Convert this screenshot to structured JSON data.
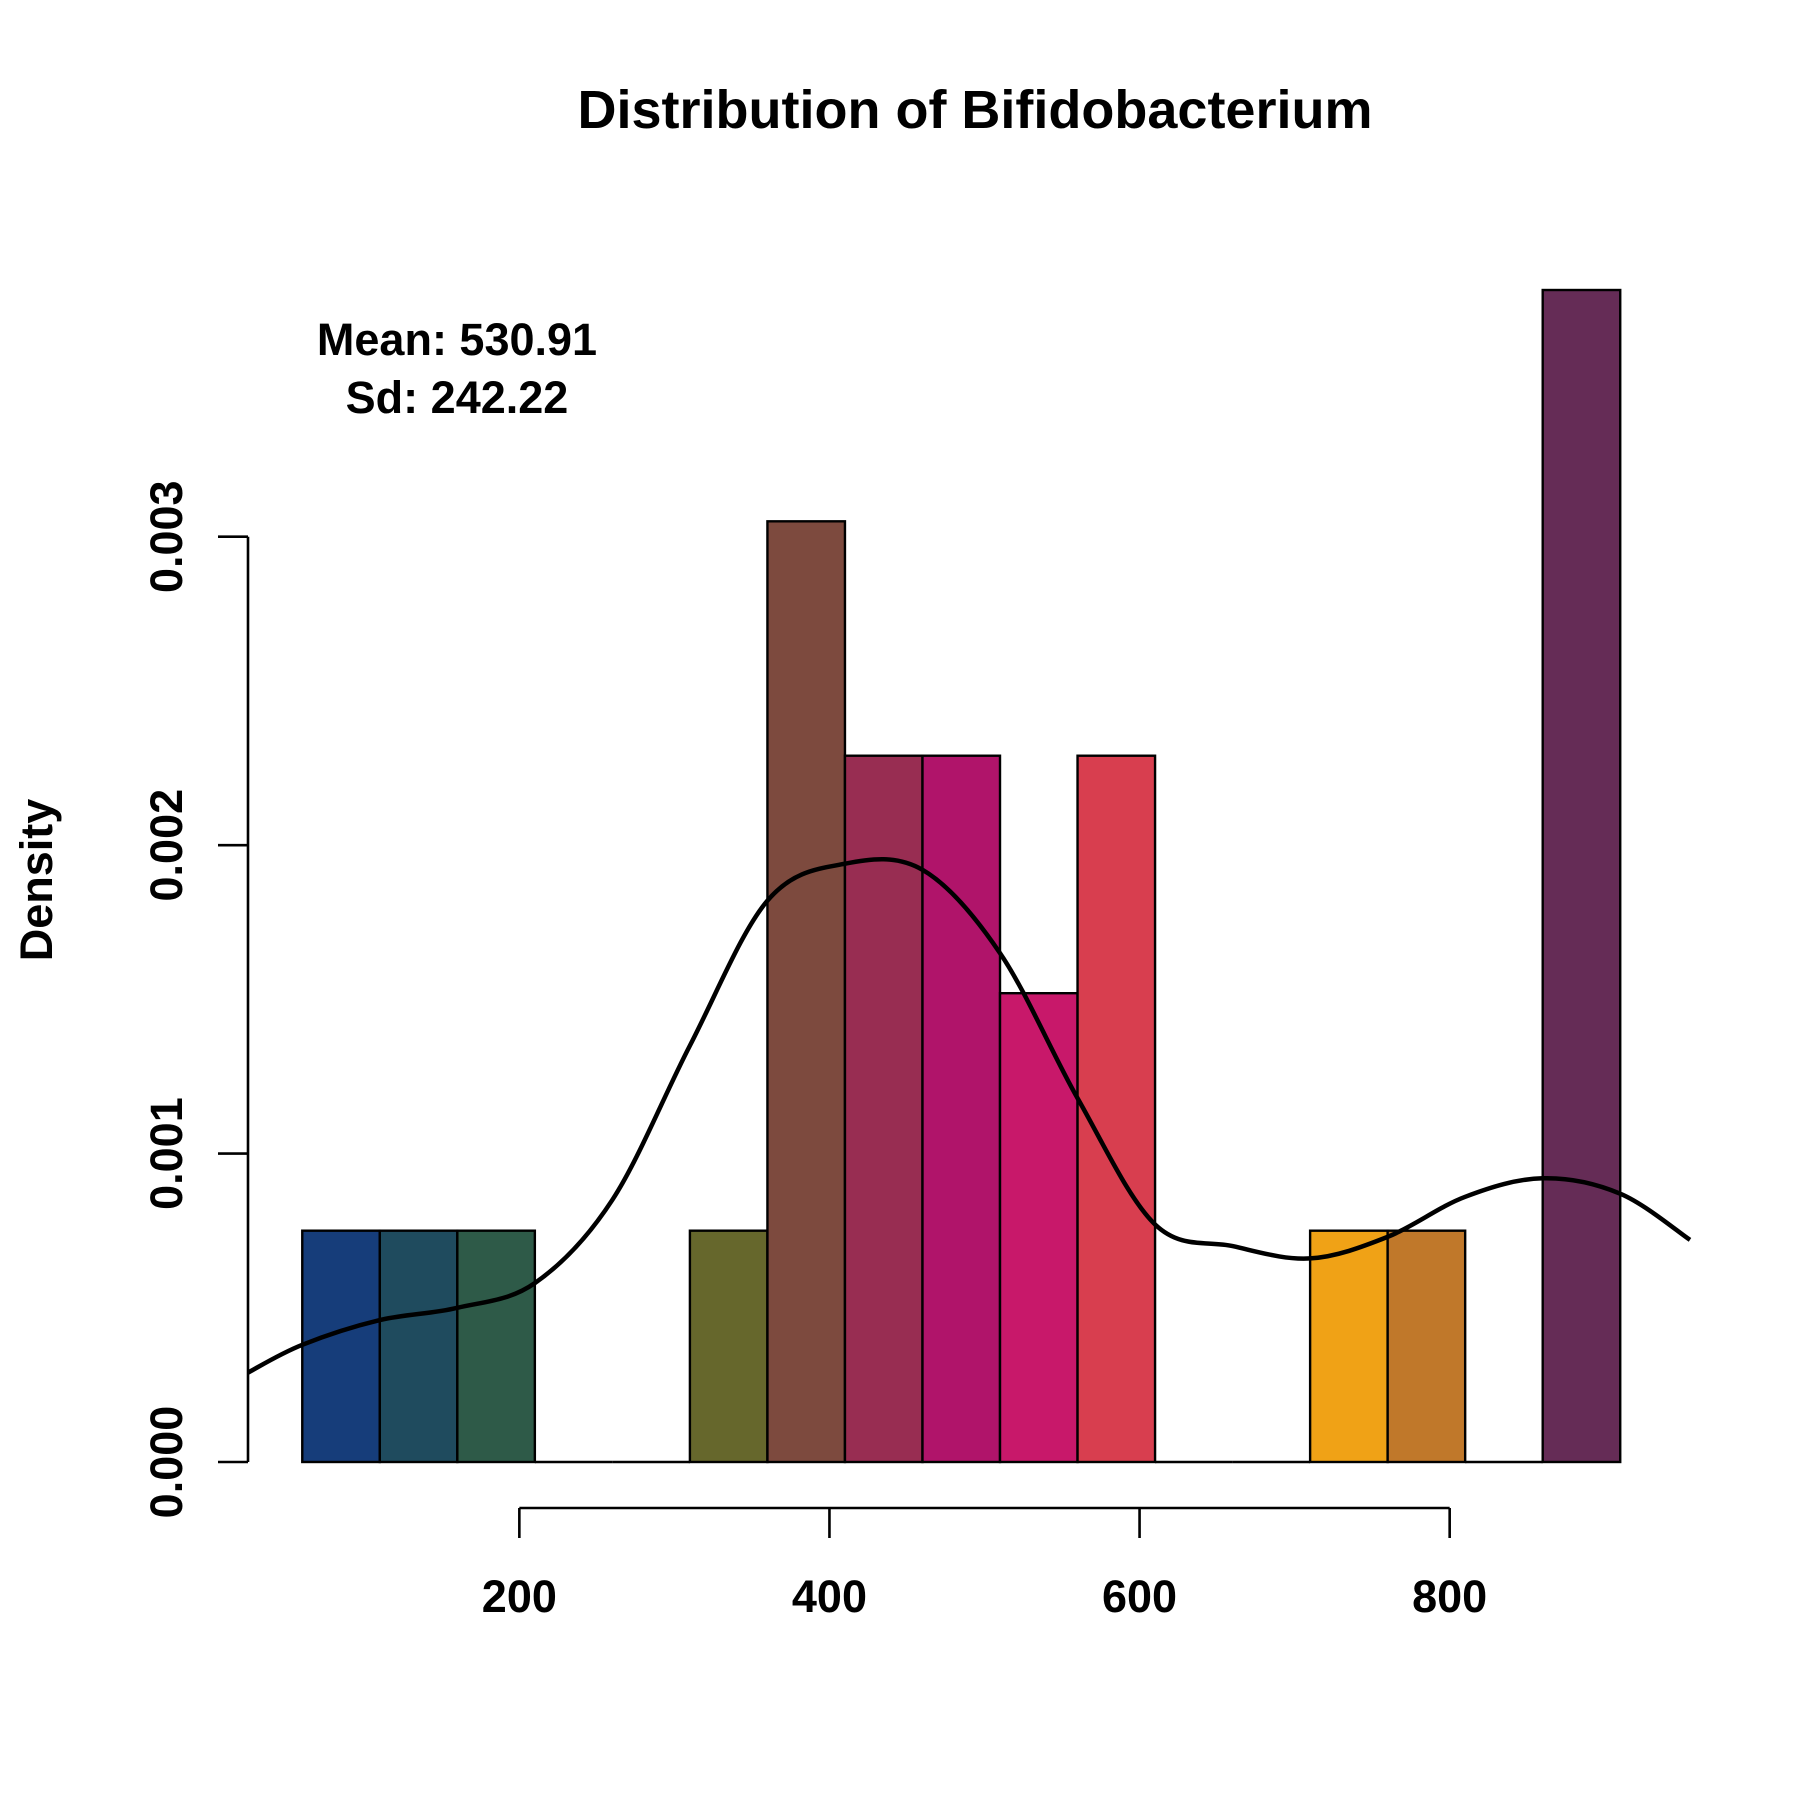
{
  "chart_data": {
    "type": "histogram",
    "title": "Distribution of Bifidobacterium",
    "xlabel": "",
    "ylabel": "Density",
    "annotation": {
      "mean_label": "Mean: 530.91",
      "sd_label": "Sd: 242.22"
    },
    "xlim": [
      25,
      955
    ],
    "ylim": [
      0,
      0.0038
    ],
    "x_ticks": [
      200,
      400,
      600,
      800
    ],
    "x_tick_labels": [
      "200",
      "400",
      "600",
      "800"
    ],
    "y_ticks": [
      0.0,
      0.001,
      0.002,
      0.003
    ],
    "y_tick_labels": [
      "0.000",
      "0.001",
      "0.002",
      "0.003"
    ],
    "grid": false,
    "bins": [
      {
        "x0": 60,
        "x1": 110,
        "density": 0.00075,
        "color": "#163d7a"
      },
      {
        "x0": 110,
        "x1": 160,
        "density": 0.00075,
        "color": "#1f4b5e"
      },
      {
        "x0": 160,
        "x1": 210,
        "density": 0.00075,
        "color": "#2e5a48"
      },
      {
        "x0": 210,
        "x1": 260,
        "density": 0,
        "color": "#ffffff"
      },
      {
        "x0": 260,
        "x1": 310,
        "density": 0,
        "color": "#ffffff"
      },
      {
        "x0": 310,
        "x1": 360,
        "density": 0.00075,
        "color": "#66672c"
      },
      {
        "x0": 360,
        "x1": 410,
        "density": 0.00305,
        "color": "#7d4a3e"
      },
      {
        "x0": 410,
        "x1": 460,
        "density": 0.00229,
        "color": "#982d52"
      },
      {
        "x0": 460,
        "x1": 510,
        "density": 0.00229,
        "color": "#b0146a"
      },
      {
        "x0": 510,
        "x1": 560,
        "density": 0.00152,
        "color": "#c8186a"
      },
      {
        "x0": 560,
        "x1": 610,
        "density": 0.00229,
        "color": "#d83e4f"
      },
      {
        "x0": 610,
        "x1": 660,
        "density": 0,
        "color": "#ffffff"
      },
      {
        "x0": 660,
        "x1": 710,
        "density": 0,
        "color": "#ffffff"
      },
      {
        "x0": 710,
        "x1": 760,
        "density": 0.00075,
        "color": "#f0a216"
      },
      {
        "x0": 760,
        "x1": 810,
        "density": 0.00075,
        "color": "#c0782a"
      },
      {
        "x0": 810,
        "x1": 860,
        "density": 0,
        "color": "#ffffff"
      },
      {
        "x0": 860,
        "x1": 910,
        "density": 0.0038,
        "color": "#652c56"
      }
    ],
    "density_curve": {
      "x": [
        25,
        60,
        110,
        160,
        210,
        260,
        310,
        360,
        410,
        460,
        510,
        560,
        610,
        660,
        710,
        760,
        810,
        860,
        910,
        955
      ],
      "y": [
        0.00029,
        0.00038,
        0.00046,
        0.0005,
        0.00058,
        0.00085,
        0.00135,
        0.00182,
        0.00194,
        0.00192,
        0.00165,
        0.00118,
        0.00077,
        0.0007,
        0.00066,
        0.00073,
        0.00086,
        0.00092,
        0.00087,
        0.00072
      ]
    }
  }
}
